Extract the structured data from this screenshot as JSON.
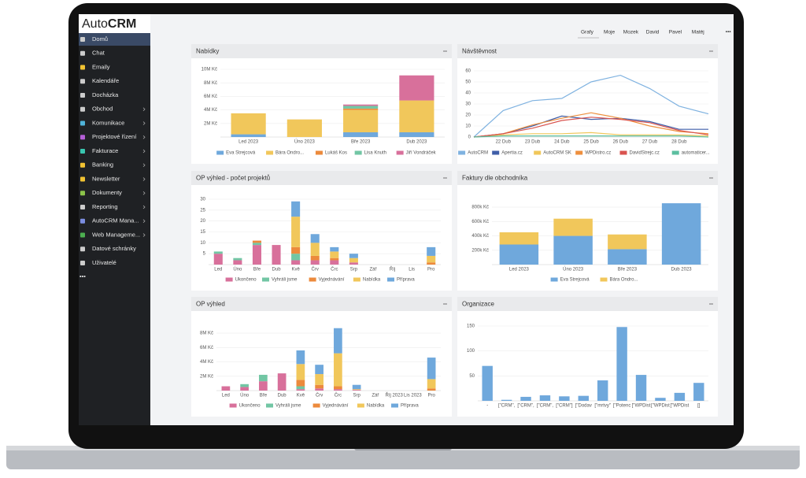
{
  "logo": {
    "prefix": "Auto",
    "suffix": "CRM"
  },
  "sidebar": {
    "items": [
      {
        "label": "Domů",
        "active": true
      },
      {
        "label": "Chat"
      },
      {
        "label": "Emaily"
      },
      {
        "label": "Kalendáře"
      },
      {
        "label": "Docházka"
      },
      {
        "label": "Obchod",
        "submenu": true
      },
      {
        "label": "Komunikace",
        "submenu": true
      },
      {
        "label": "Projektové řízení",
        "submenu": true
      },
      {
        "label": "Fakturace",
        "submenu": true
      },
      {
        "label": "Banking",
        "submenu": true
      },
      {
        "label": "Newsletter",
        "submenu": true
      },
      {
        "label": "Dokumenty",
        "submenu": true
      },
      {
        "label": "Reporting",
        "submenu": true
      },
      {
        "label": "AutoCRM Mana...",
        "submenu": true
      },
      {
        "label": "Web Manageme...",
        "submenu": true
      },
      {
        "label": "Datové schránky"
      },
      {
        "label": "Uživatelé"
      },
      {
        "label": "•••"
      }
    ]
  },
  "tabs": [
    {
      "label": "Grafy",
      "active": true
    },
    {
      "label": "Moje"
    },
    {
      "label": "Mozek"
    },
    {
      "label": "David"
    },
    {
      "label": "Pavel"
    },
    {
      "label": "Matěj"
    },
    {
      "label": "•••"
    }
  ],
  "chart_data": [
    {
      "type": "bar",
      "stacked": true,
      "title": "Nabídky",
      "categories": [
        "Led 2023",
        "Úno 2023",
        "Bře 2023",
        "Dub 2023"
      ],
      "series": [
        {
          "name": "Eva Strejcová",
          "color": "#6fa8dc",
          "values": [
            0.4,
            0,
            0.7,
            0.7
          ]
        },
        {
          "name": "Bára Ondro...",
          "color": "#f1c75b",
          "values": [
            3.1,
            2.6,
            3.3,
            4.7
          ]
        },
        {
          "name": "Lukáš Kos",
          "color": "#ec8a3c",
          "values": [
            0,
            0,
            0.2,
            0
          ]
        },
        {
          "name": "Lisa Knuth",
          "color": "#72c6a4",
          "values": [
            0,
            0,
            0.4,
            0
          ]
        },
        {
          "name": "Jiří Vondráček",
          "color": "#d8709b",
          "values": [
            0,
            0,
            0.2,
            3.7
          ]
        }
      ],
      "ylim": [
        0,
        10
      ],
      "yticks": [
        {
          "value": 2,
          "label": "2M Kč"
        },
        {
          "value": 4,
          "label": "4M Kč"
        },
        {
          "value": 6,
          "label": "6M Kč"
        },
        {
          "value": 8,
          "label": "8M Kč"
        },
        {
          "value": 10,
          "label": "10M Kč"
        }
      ],
      "grid": true
    },
    {
      "type": "line",
      "title": "Návštěvnost",
      "categories": [
        null,
        "22 Dub",
        "23 Dub",
        "24 Dub",
        "25 Dub",
        "26 Dub",
        "27 Dub",
        "28 Dub",
        null
      ],
      "series": [
        {
          "name": "AutoCRM",
          "color": "#7fb2e0",
          "values": [
            0,
            24,
            33,
            35,
            50,
            56,
            44,
            28,
            21
          ]
        },
        {
          "name": "Apertia.cz",
          "color": "#3f5ea8",
          "values": [
            0,
            3,
            10,
            19,
            16,
            17,
            14,
            7,
            7
          ]
        },
        {
          "name": "AutoCRM SK",
          "color": "#f0c75a",
          "values": [
            0,
            2,
            3,
            3,
            4,
            2,
            2,
            2,
            1
          ]
        },
        {
          "name": "WPDistro.cz",
          "color": "#ee8f3d",
          "values": [
            0,
            3,
            11,
            17,
            22,
            17,
            10,
            5,
            3
          ]
        },
        {
          "name": "DavidStrejc.cz",
          "color": "#d9534f",
          "values": [
            0,
            3,
            8,
            15,
            18,
            16,
            13,
            6,
            2
          ]
        },
        {
          "name": "automaticer...",
          "color": "#5cbfa0",
          "values": [
            0,
            1,
            1,
            1,
            1,
            1,
            1,
            1,
            0
          ]
        }
      ],
      "ylim": [
        0,
        60
      ],
      "yticks": [
        0,
        10,
        20,
        30,
        40,
        50,
        60
      ],
      "grid": true
    },
    {
      "type": "bar",
      "stacked": true,
      "title": "OP výhled - počet projektů",
      "categories": [
        "Led",
        "Úno",
        "Bře",
        "Dub",
        "Kvě",
        "Črv",
        "Črc",
        "Srp",
        "Zář",
        "Říj",
        "Lis",
        "Pro"
      ],
      "series": [
        {
          "name": "Ukončeno",
          "color": "#d8709b",
          "values": [
            5,
            2,
            9,
            9,
            2,
            2,
            2,
            1,
            0,
            0,
            0,
            0
          ]
        },
        {
          "name": "Vyhráli jsme",
          "color": "#72c6a4",
          "values": [
            1,
            1,
            1,
            0,
            3,
            0,
            0,
            0,
            0,
            0,
            0,
            0
          ]
        },
        {
          "name": "Vyjednávání",
          "color": "#ec8a3c",
          "values": [
            0,
            0,
            1,
            0,
            3,
            2,
            1,
            0,
            0,
            0,
            0,
            1
          ]
        },
        {
          "name": "Nabídka",
          "color": "#f1c75b",
          "values": [
            0,
            0,
            0,
            0,
            14,
            6,
            3,
            2,
            0,
            0,
            0,
            3
          ]
        },
        {
          "name": "Příprava",
          "color": "#6fa8dc",
          "values": [
            0,
            0,
            0,
            0,
            7,
            4,
            2,
            2,
            0,
            0,
            0,
            4
          ]
        }
      ],
      "ylim": [
        0,
        30
      ],
      "yticks": [
        5,
        10,
        15,
        20,
        25,
        30
      ],
      "grid": true
    },
    {
      "type": "bar",
      "stacked": true,
      "title": "Faktury dle obchodníka",
      "categories": [
        "Led 2023",
        "Úno 2023",
        "Bře 2023",
        "Dub 2023"
      ],
      "series": [
        {
          "name": "Eva Strejcová",
          "color": "#6fa8dc",
          "values": [
            280,
            400,
            215,
            855
          ]
        },
        {
          "name": "Bára Ondro...",
          "color": "#f1c75b",
          "values": [
            170,
            240,
            205,
            0
          ]
        }
      ],
      "ylim": [
        0,
        900
      ],
      "yticks": [
        {
          "value": 200,
          "label": "200k Kč"
        },
        {
          "value": 400,
          "label": "400k Kč"
        },
        {
          "value": 600,
          "label": "600k Kč"
        },
        {
          "value": 800,
          "label": "800k Kč"
        }
      ],
      "grid": true
    },
    {
      "type": "bar",
      "stacked": true,
      "title": "OP výhled",
      "categories": [
        "Led",
        "Úno",
        "Bře",
        "Dub",
        "Kvě",
        "Črv",
        "Črc",
        "Srp",
        "Zář",
        "Říj 2023",
        "Lis 2023",
        "Pro"
      ],
      "series": [
        {
          "name": "Ukončeno",
          "color": "#d8709b",
          "values": [
            0.6,
            0.5,
            1.3,
            2.4,
            0.2,
            0.3,
            0.2,
            0.1,
            0,
            0,
            0,
            0
          ]
        },
        {
          "name": "Vyhráli jsme",
          "color": "#72c6a4",
          "values": [
            0,
            0.4,
            0.9,
            0,
            0.4,
            0,
            0,
            0,
            0,
            0,
            0,
            0
          ]
        },
        {
          "name": "Vyjednávání",
          "color": "#ec8a3c",
          "values": [
            0,
            0,
            0,
            0,
            0.9,
            0.5,
            0.4,
            0,
            0,
            0,
            0,
            0.3
          ]
        },
        {
          "name": "Nabídka",
          "color": "#f1c75b",
          "values": [
            0,
            0,
            0,
            0,
            2.2,
            1.5,
            4.6,
            0.1,
            0,
            0,
            0,
            1.3
          ]
        },
        {
          "name": "Příprava",
          "color": "#6fa8dc",
          "values": [
            0,
            0,
            0,
            0,
            1.9,
            1.3,
            3.5,
            0.6,
            0,
            0,
            0,
            3.0
          ]
        }
      ],
      "ylim": [
        0,
        9
      ],
      "yticks": [
        {
          "value": 2,
          "label": "2M Kč"
        },
        {
          "value": 4,
          "label": "4M Kč"
        },
        {
          "value": 6,
          "label": "6M Kč"
        },
        {
          "value": 8,
          "label": "8M Kč"
        }
      ],
      "grid": true
    },
    {
      "type": "bar",
      "title": "Organizace",
      "categories": [
        "-",
        "[\"CRM\",",
        "[\"CRM\",",
        "[\"CRM\",",
        "[\"CRM\"]",
        "[\"Dodav",
        "[\"mrtvy\"",
        "[\"Potenc",
        "[\"WPDist",
        "[\"WPDist",
        "[\"WPDist",
        "[]"
      ],
      "values": [
        70,
        2,
        8,
        11,
        9,
        10,
        41,
        148,
        52,
        6,
        16,
        36
      ],
      "color": "#6fa8dc",
      "ylim": [
        0,
        150
      ],
      "yticks": [
        50,
        100,
        150
      ],
      "grid": true
    }
  ]
}
